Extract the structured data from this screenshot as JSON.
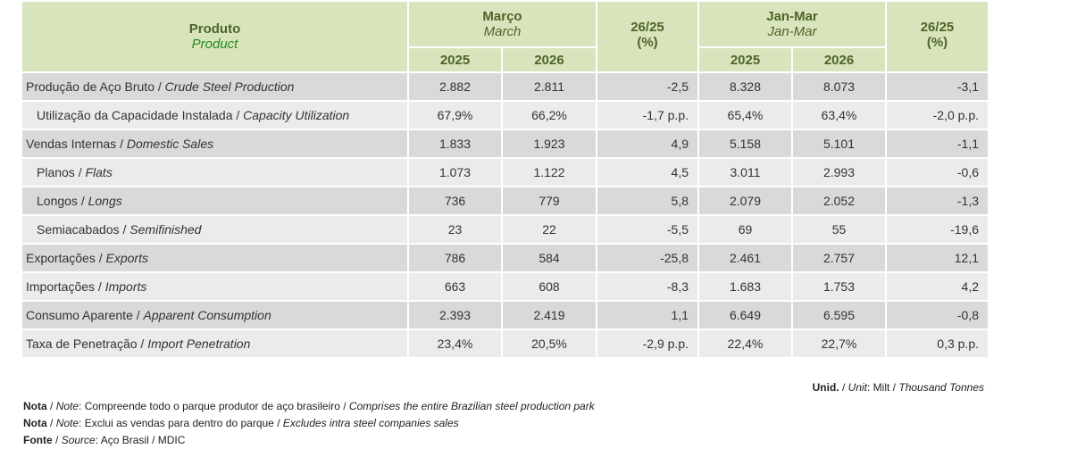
{
  "header": {
    "product_pt": "Produto",
    "product_en": "Product",
    "march_pt": "Março",
    "march_en": "March",
    "change": "26/25",
    "change_unit": "(%)",
    "ytd_pt": "Jan-Mar",
    "ytd_en": "Jan-Mar",
    "y1": "2025",
    "y2": "2026"
  },
  "rows": [
    {
      "pt": "Produção de Aço Bruto",
      "en": "Crude Steel Production",
      "sub": false,
      "m25": "2.882",
      "m26": "2.811",
      "mchg": "-2,5",
      "y25": "8.328",
      "y26": "8.073",
      "ychg": "-3,1"
    },
    {
      "pt": "Utilização da Capacidade Instalada",
      "en": "Capacity Utilization",
      "sub": true,
      "m25": "67,9%",
      "m26": "66,2%",
      "mchg": "-1,7 p.p.",
      "y25": "65,4%",
      "y26": "63,4%",
      "ychg": "-2,0 p.p."
    },
    {
      "pt": "Vendas Internas",
      "en": "Domestic Sales",
      "sub": false,
      "m25": "1.833",
      "m26": "1.923",
      "mchg": "4,9",
      "y25": "5.158",
      "y26": "5.101",
      "ychg": "-1,1"
    },
    {
      "pt": "Planos",
      "en": "Flats",
      "sub": true,
      "m25": "1.073",
      "m26": "1.122",
      "mchg": "4,5",
      "y25": "3.011",
      "y26": "2.993",
      "ychg": "-0,6"
    },
    {
      "pt": "Longos",
      "en": "Longs",
      "sub": true,
      "m25": "736",
      "m26": "779",
      "mchg": "5,8",
      "y25": "2.079",
      "y26": "2.052",
      "ychg": "-1,3"
    },
    {
      "pt": "Semiacabados",
      "en": "Semifinished",
      "sub": true,
      "m25": "23",
      "m26": "22",
      "mchg": "-5,5",
      "y25": "69",
      "y26": "55",
      "ychg": "-19,6"
    },
    {
      "pt": "Exportações",
      "en": "Exports",
      "sub": false,
      "m25": "786",
      "m26": "584",
      "mchg": "-25,8",
      "y25": "2.461",
      "y26": "2.757",
      "ychg": "12,1"
    },
    {
      "pt": "Importações",
      "en": "Imports",
      "sub": false,
      "m25": "663",
      "m26": "608",
      "mchg": "-8,3",
      "y25": "1.683",
      "y26": "1.753",
      "ychg": "4,2"
    },
    {
      "pt": "Consumo Aparente",
      "en": "Apparent Consumption",
      "sub": false,
      "m25": "2.393",
      "m26": "2.419",
      "mchg": "1,1",
      "y25": "6.649",
      "y26": "6.595",
      "ychg": "-0,8"
    },
    {
      "pt": "Taxa de Penetração",
      "en": "Import Penetration",
      "sub": false,
      "m25": "23,4%",
      "m26": "20,5%",
      "mchg": "-2,9 p.p.",
      "y25": "22,4%",
      "y26": "22,7%",
      "ychg": "0,3 p.p."
    }
  ],
  "notes": {
    "unit_label_pt": "Unid.",
    "unit_label_en": "Unit",
    "unit_pt": "Milt",
    "unit_en": "Thousand Tonnes",
    "note_pt": "Nota",
    "note_en": "Note",
    "note1_pt": "Compreende todo o parque produtor de aço brasileiro",
    "note1_en": "Comprises the entire Brazilian steel production park",
    "note2_pt": "Exclui as vendas para dentro do parque",
    "note2_en": "Excludes intra steel companies sales",
    "source_pt": "Fonte",
    "source_en": "Source",
    "source": "Aço Brasil / MDIC"
  },
  "colors": {
    "header_bg": "#d8e4bc",
    "header_text": "#4f6228",
    "row_dark": "#d9d9d9",
    "row_light": "#ebebeb"
  }
}
